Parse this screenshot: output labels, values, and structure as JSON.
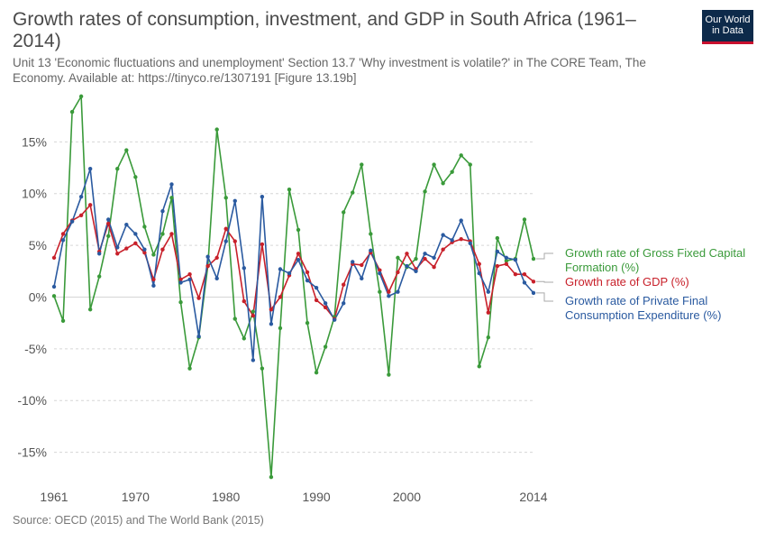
{
  "header": {
    "title": "Growth rates of consumption, investment, and GDP in South Africa (1961–2014)",
    "subtitle": "Unit 13 'Economic fluctuations and unemployment' Section 13.7 'Why investment is volatile?' in The CORE Team, The Economy. Available at: https://tinyco.re/1307191 [Figure 13.19b]"
  },
  "logo": {
    "line1": "Our World",
    "line2": "in Data"
  },
  "source": "Source: OECD (2015) and The World Bank (2015)",
  "chart_data": {
    "type": "line",
    "x": [
      1961,
      1962,
      1963,
      1964,
      1965,
      1966,
      1967,
      1968,
      1969,
      1970,
      1971,
      1972,
      1973,
      1974,
      1975,
      1976,
      1977,
      1978,
      1979,
      1980,
      1981,
      1982,
      1983,
      1984,
      1985,
      1986,
      1987,
      1988,
      1989,
      1990,
      1991,
      1992,
      1993,
      1994,
      1995,
      1996,
      1997,
      1998,
      1999,
      2000,
      2001,
      2002,
      2003,
      2004,
      2005,
      2006,
      2007,
      2008,
      2009,
      2010,
      2011,
      2012,
      2013,
      2014
    ],
    "xlim": [
      1961,
      2014
    ],
    "ylim": [
      -18,
      20
    ],
    "y_ticks": [
      -15,
      -10,
      -5,
      0,
      5,
      10,
      15
    ],
    "y_tick_labels": [
      "-15%",
      "-10%",
      "-5%",
      "0%",
      "5%",
      "10%",
      "15%"
    ],
    "x_ticks": [
      1961,
      1970,
      1980,
      1990,
      2000,
      2014
    ],
    "x_tick_labels": [
      "1961",
      "1970",
      "1980",
      "1990",
      "2000",
      "2014"
    ],
    "grid": "horizontal-dashed",
    "legend_position": "right",
    "series": [
      {
        "name": "Growth rate of Gross Fixed Capital Formation (%)",
        "label_lines": [
          "Growth rate of Gross Fixed Capital",
          "Formation (%)"
        ],
        "color": "#3a9a3a",
        "values": [
          0.1,
          -2.3,
          17.9,
          19.4,
          -1.2,
          2.0,
          5.9,
          12.4,
          14.2,
          11.6,
          6.8,
          4.1,
          6.1,
          9.6,
          -0.5,
          -6.9,
          -3.9,
          3.0,
          16.2,
          9.6,
          -2.1,
          -4.0,
          -1.4,
          -6.9,
          -17.4,
          -3.0,
          10.4,
          6.5,
          -2.5,
          -7.3,
          -4.8,
          -1.9,
          8.2,
          10.1,
          12.8,
          6.1,
          0.5,
          -7.5,
          3.8,
          2.9,
          3.7,
          10.2,
          12.8,
          11.0,
          12.1,
          13.7,
          12.8,
          -6.7,
          -3.9,
          5.7,
          3.5,
          3.7,
          7.5,
          3.7
        ]
      },
      {
        "name": "Growth rate of GDP (%)",
        "label_lines": [
          "Growth rate of GDP (%)"
        ],
        "color": "#c8202a",
        "values": [
          3.8,
          6.1,
          7.4,
          7.9,
          8.9,
          4.4,
          7.1,
          4.2,
          4.7,
          5.2,
          4.3,
          1.7,
          4.6,
          6.1,
          1.7,
          2.2,
          -0.1,
          3.0,
          3.8,
          6.6,
          5.4,
          -0.4,
          -1.8,
          5.1,
          -1.2,
          0.0,
          2.1,
          4.2,
          2.4,
          -0.3,
          -1.0,
          -2.1,
          1.2,
          3.2,
          3.1,
          4.3,
          2.6,
          0.5,
          2.4,
          4.2,
          2.7,
          3.7,
          2.9,
          4.6,
          5.3,
          5.6,
          5.4,
          3.2,
          -1.5,
          3.0,
          3.2,
          2.2,
          2.2,
          1.5
        ]
      },
      {
        "name": "Growth rate of Private Final Consumption Expenditure (%)",
        "label_lines": [
          "Growth rate of Private Final",
          "Consumption Expenditure (%)"
        ],
        "color": "#2a5aa0",
        "values": [
          1.0,
          5.5,
          7.3,
          9.7,
          12.4,
          4.2,
          7.5,
          4.8,
          7.0,
          6.1,
          4.6,
          1.1,
          8.3,
          10.9,
          1.4,
          1.7,
          -3.8,
          3.9,
          1.8,
          5.4,
          9.3,
          2.8,
          -6.1,
          9.7,
          -2.6,
          2.7,
          2.3,
          3.6,
          1.6,
          0.9,
          -0.6,
          -2.2,
          -0.6,
          3.4,
          1.8,
          4.5,
          2.3,
          0.1,
          0.5,
          3.0,
          2.5,
          4.2,
          3.8,
          6.0,
          5.5,
          7.4,
          5.2,
          2.3,
          0.5,
          4.4,
          3.8,
          3.6,
          1.4,
          0.4
        ]
      }
    ]
  }
}
